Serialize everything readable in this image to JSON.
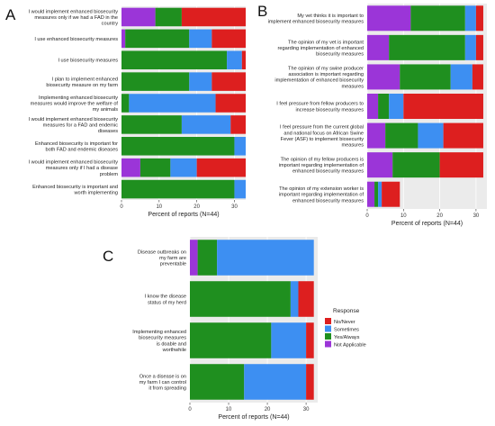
{
  "colors": {
    "No/Never": "#dd1f1f",
    "Sometimes": "#3d8ff2",
    "Yes/Always": "#1f8f1f",
    "Not Applicable": "#9b35d8",
    "panel_bg": "#ebebeb",
    "grid": "#ffffff"
  },
  "legend": {
    "title": "Response",
    "items": [
      "No/Never",
      "Sometimes",
      "Yes/Always",
      "Not Applicable"
    ]
  },
  "chart_data": [
    {
      "panel": "A",
      "type": "bar",
      "orientation": "horizontal",
      "stacked": true,
      "xlabel": "Percent of reports (N=44)",
      "xlim": [
        0,
        33
      ],
      "xticks": [
        0,
        10,
        20,
        30
      ],
      "categories": [
        "I would implement enhanced biosecurity measures only if we had a FAD in the country",
        "I use enhanced biosecurity measures",
        "I use biosecurity measures",
        "I plan to implement enhanced biosecurity measure on my farm",
        "Implementing enhanced biosecurity measures would improve the welfare of my animals",
        "I would implement enhanced biosecurity measures for a FAD and endemic diseases",
        "Enhanced biosecurity is important for both FAD and endemic diseases",
        "I would implement enhanced biosecurity measures only if I had a disease problem",
        "Enhanced biosecurity is important and worth implementing"
      ],
      "series": [
        {
          "name": "Not Applicable",
          "values": [
            9,
            1,
            0,
            0,
            0,
            0,
            0,
            5,
            0
          ]
        },
        {
          "name": "Yes/Always",
          "values": [
            7,
            17,
            28,
            18,
            2,
            16,
            30,
            8,
            30
          ]
        },
        {
          "name": "Sometimes",
          "values": [
            0,
            6,
            4,
            6,
            23,
            13,
            3,
            7,
            3
          ]
        },
        {
          "name": "No/Never",
          "values": [
            17,
            9,
            1,
            9,
            8,
            4,
            0,
            13,
            0
          ]
        }
      ]
    },
    {
      "panel": "B",
      "type": "bar",
      "orientation": "horizontal",
      "stacked": true,
      "xlabel": "Percent of reports (N=44)",
      "xlim": [
        0,
        33
      ],
      "xticks": [
        0,
        10,
        20,
        30
      ],
      "categories": [
        "My vet thinks it is important to implement enhanced biosecurity measures",
        "The opinion of my vet is important regarding implementation of enhanced biosecurity measures",
        "The opinion of my swine producer association is important regarding implementation of enhanced biosecurity measures",
        "I feel pressure from fellow producers to increase biosecurity measures",
        "I feel pressure from the current global and national focus on African Swine Fever (ASF) to implement biosecurity measures",
        "The opinion of my fellow producers is important regarding implementation of enhanced biosecurity measures",
        "The opinion of my extension worker is important regarding implementation of enhanced biosecurity measures"
      ],
      "series": [
        {
          "name": "Not Applicable",
          "values": [
            12,
            6,
            9,
            3,
            5,
            7,
            2
          ]
        },
        {
          "name": "Yes/Always",
          "values": [
            15,
            21,
            14,
            3,
            9,
            13,
            1
          ]
        },
        {
          "name": "Sometimes",
          "values": [
            3,
            3,
            6,
            4,
            7,
            0,
            1
          ]
        },
        {
          "name": "No/Never",
          "values": [
            2,
            2,
            3,
            22,
            11,
            12,
            5
          ]
        }
      ]
    },
    {
      "panel": "C",
      "type": "bar",
      "orientation": "horizontal",
      "stacked": true,
      "xlabel": "Percent of reports (N=44)",
      "xlim": [
        0,
        33
      ],
      "xticks": [
        0,
        10,
        20,
        30
      ],
      "categories": [
        "Disease outbreaks on my farm are preventable",
        "I know the disease status of my herd",
        "Implementing enhanced biosecurity measures is doable and worthwhile",
        "Once a disease is on my farm I can control it from spreading"
      ],
      "series": [
        {
          "name": "Not Applicable",
          "values": [
            2,
            0,
            0,
            0
          ]
        },
        {
          "name": "Yes/Always",
          "values": [
            5,
            26,
            21,
            14
          ]
        },
        {
          "name": "Sometimes",
          "values": [
            25,
            2,
            9,
            16
          ]
        },
        {
          "name": "No/Never",
          "values": [
            0,
            4,
            2,
            2
          ]
        }
      ]
    }
  ]
}
